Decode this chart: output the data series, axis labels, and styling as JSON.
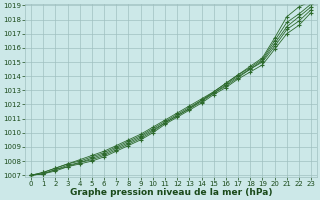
{
  "xlabel": "Graphe pression niveau de la mer (hPa)",
  "x": [
    0,
    1,
    2,
    3,
    4,
    5,
    6,
    7,
    8,
    9,
    10,
    11,
    12,
    13,
    14,
    15,
    16,
    17,
    18,
    19,
    20,
    21,
    22,
    23
  ],
  "lines": [
    [
      1007.0,
      1007.2,
      1007.5,
      1007.8,
      1008.1,
      1008.4,
      1008.7,
      1009.1,
      1009.5,
      1009.9,
      1010.4,
      1010.9,
      1011.4,
      1011.9,
      1012.4,
      1012.9,
      1013.5,
      1014.1,
      1014.7,
      1015.3,
      1016.7,
      1018.2,
      1018.9,
      1019.3
    ],
    [
      1007.0,
      1007.2,
      1007.5,
      1007.8,
      1008.0,
      1008.3,
      1008.6,
      1009.0,
      1009.4,
      1009.8,
      1010.3,
      1010.8,
      1011.3,
      1011.8,
      1012.3,
      1012.9,
      1013.5,
      1014.1,
      1014.6,
      1015.2,
      1016.5,
      1017.8,
      1018.4,
      1019.1
    ],
    [
      1007.0,
      1007.1,
      1007.4,
      1007.7,
      1007.9,
      1008.2,
      1008.5,
      1008.9,
      1009.3,
      1009.7,
      1010.2,
      1010.7,
      1011.2,
      1011.7,
      1012.3,
      1012.8,
      1013.4,
      1014.0,
      1014.5,
      1015.1,
      1016.3,
      1017.5,
      1018.2,
      1018.9
    ],
    [
      1007.0,
      1007.1,
      1007.4,
      1007.6,
      1007.9,
      1008.1,
      1008.4,
      1008.8,
      1009.2,
      1009.6,
      1010.1,
      1010.7,
      1011.2,
      1011.7,
      1012.2,
      1012.8,
      1013.3,
      1013.9,
      1014.5,
      1015.0,
      1016.1,
      1017.3,
      1017.9,
      1018.7
    ],
    [
      1007.0,
      1007.1,
      1007.3,
      1007.6,
      1007.8,
      1008.0,
      1008.3,
      1008.7,
      1009.1,
      1009.5,
      1010.0,
      1010.6,
      1011.1,
      1011.6,
      1012.1,
      1012.7,
      1013.2,
      1013.8,
      1014.3,
      1014.8,
      1015.9,
      1017.0,
      1017.6,
      1018.5
    ]
  ],
  "line_color": "#2d6a2d",
  "marker": "+",
  "bg_color": "#cce8e8",
  "grid_color": "#a0c0c0",
  "text_color": "#1a4a1a",
  "ylim": [
    1007,
    1019
  ],
  "yticks": [
    1007,
    1008,
    1009,
    1010,
    1011,
    1012,
    1013,
    1014,
    1015,
    1016,
    1017,
    1018,
    1019
  ],
  "xticks": [
    0,
    1,
    2,
    3,
    4,
    5,
    6,
    7,
    8,
    9,
    10,
    11,
    12,
    13,
    14,
    15,
    16,
    17,
    18,
    19,
    20,
    21,
    22,
    23
  ],
  "tick_fontsize": 5.0,
  "xlabel_fontsize": 6.5
}
